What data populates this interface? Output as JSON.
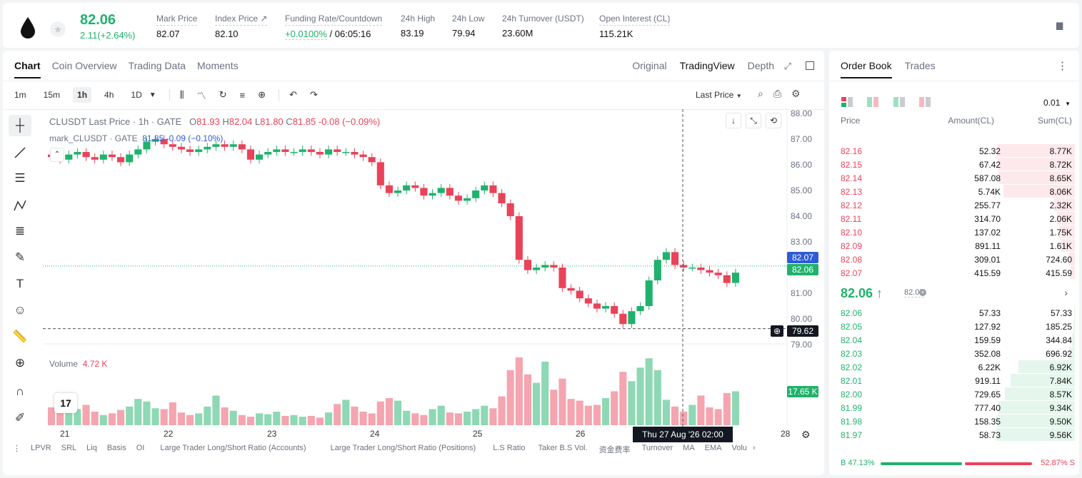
{
  "header": {
    "last_price": "82.06",
    "change": "2.11(+2.64%)",
    "stats": [
      {
        "label": "Mark Price",
        "value": "82.07"
      },
      {
        "label": "Index Price ↗",
        "value": "82.10"
      },
      {
        "label": "Funding Rate/Countdown",
        "value_green": "+0.0100%",
        "value": " / 06:05:16"
      },
      {
        "label": "24h High",
        "value": "83.19"
      },
      {
        "label": "24h Low",
        "value": "79.94"
      },
      {
        "label": "24h Turnover (USDT)",
        "value": "23.60M"
      },
      {
        "label": "Open Interest (CL)",
        "value": "115.21K"
      }
    ]
  },
  "chart_tabs": [
    "Chart",
    "Coin Overview",
    "Trading Data",
    "Moments"
  ],
  "view_tabs": [
    "Original",
    "TradingView",
    "Depth"
  ],
  "timeframes": [
    "1m",
    "15m",
    "1h",
    "4h",
    "1D"
  ],
  "price_type": "Last Price",
  "ohlc": {
    "symbol": "CLUSDT Last Price · 1h · GATE",
    "o_label": "O",
    "o": "81.93",
    "h_label": "H",
    "h": "82.04",
    "l_label": "L",
    "l": "81.80",
    "c_label": "C",
    "c": "81.85",
    "chg": "-0.08 (−0.09%)"
  },
  "mark_line": {
    "label": "mark_CLUSDT · GATE",
    "value": "81.85 -0.09 (−0.10%)"
  },
  "volume_label": "Volume",
  "volume_value": "4.72 K",
  "price_tags": {
    "mark": "82.07",
    "last": "82.06",
    "cross": "79.62",
    "volume": "17.65 K"
  },
  "time_tag": "Thu 27 Aug '26   02:00",
  "indicators": [
    "LPVR",
    "SRL",
    "Liq",
    "Basis",
    "OI",
    "Large Trader Long/Short Ratio (Accounts)",
    "Large Trader Long/Short Ratio (Positions)",
    "L.S Ratio",
    "Taker B.S Vol.",
    "资金费率",
    "Turnover",
    "MA",
    "EMA",
    "Volu"
  ],
  "chart_data": {
    "type": "candlestick",
    "y_axis_ticks": [
      "88.00",
      "87.00",
      "86.00",
      "85.00",
      "84.00",
      "83.00",
      "82.00",
      "81.00",
      "80.00",
      "79.00"
    ],
    "ylim": [
      79,
      88
    ],
    "x_axis_ticks": [
      "21",
      "22",
      "23",
      "24",
      "25",
      "26",
      "28"
    ],
    "candles_close": [
      86.3,
      86.2,
      86.4,
      86.5,
      86.3,
      86.2,
      86.4,
      86.3,
      86.1,
      86.4,
      86.6,
      86.9,
      87.0,
      86.8,
      86.7,
      86.6,
      86.5,
      86.6,
      86.7,
      86.8,
      86.7,
      86.8,
      86.6,
      86.2,
      86.4,
      86.5,
      86.6,
      86.5,
      86.5,
      86.6,
      86.5,
      86.4,
      86.6,
      86.5,
      86.5,
      86.4,
      86.3,
      86.1,
      85.2,
      84.9,
      85.0,
      85.2,
      85.1,
      84.8,
      84.9,
      85.1,
      84.8,
      84.6,
      84.7,
      85.0,
      85.2,
      84.9,
      84.5,
      84.0,
      82.3,
      81.9,
      82.0,
      82.1,
      82.0,
      81.2,
      81.1,
      80.8,
      80.6,
      80.4,
      80.5,
      80.2,
      79.8,
      80.3,
      80.5,
      81.5,
      82.3,
      82.6,
      82.1,
      82.0,
      82.0,
      81.9,
      81.8,
      81.7,
      81.4,
      81.8
    ],
    "volumes": [
      2.1,
      1.8,
      1.5,
      1.9,
      2.4,
      1.6,
      1.2,
      1.4,
      1.8,
      2.2,
      3.1,
      2.8,
      2.0,
      1.9,
      2.7,
      1.5,
      1.2,
      1.4,
      2.2,
      3.5,
      2.1,
      1.7,
      1.2,
      1.0,
      1.4,
      1.3,
      1.6,
      1.1,
      1.2,
      1.0,
      1.1,
      0.9,
      1.5,
      2.5,
      3.0,
      2.2,
      1.6,
      1.4,
      2.8,
      3.2,
      2.9,
      1.7,
      1.4,
      1.2,
      1.9,
      2.3,
      1.5,
      1.4,
      1.6,
      1.9,
      2.3,
      2.0,
      3.4,
      6.5,
      8.0,
      6.0,
      5.0,
      7.5,
      4.2,
      5.5,
      3.1,
      2.9,
      2.3,
      2.4,
      3.2,
      4.0,
      6.3,
      5.2,
      6.8,
      7.9,
      6.5,
      3.0,
      2.2,
      1.6,
      2.4,
      3.5,
      2.1,
      1.9,
      3.8,
      4.0
    ]
  },
  "orderbook": {
    "tabs": [
      "Order Book",
      "Trades"
    ],
    "precision": "0.01",
    "headers": [
      "Price",
      "Amount(CL)",
      "Sum(CL)"
    ],
    "asks": [
      {
        "price": "82.16",
        "amount": "52.32",
        "sum": "8.77K",
        "depth": 0.99
      },
      {
        "price": "82.15",
        "amount": "67.42",
        "sum": "8.72K",
        "depth": 0.98
      },
      {
        "price": "82.14",
        "amount": "587.08",
        "sum": "8.65K",
        "depth": 0.97
      },
      {
        "price": "82.13",
        "amount": "5.74K",
        "sum": "8.06K",
        "depth": 0.91
      },
      {
        "price": "82.12",
        "amount": "255.77",
        "sum": "2.32K",
        "depth": 0.26
      },
      {
        "price": "82.11",
        "amount": "314.70",
        "sum": "2.06K",
        "depth": 0.23
      },
      {
        "price": "82.10",
        "amount": "137.02",
        "sum": "1.75K",
        "depth": 0.2
      },
      {
        "price": "82.09",
        "amount": "891.11",
        "sum": "1.61K",
        "depth": 0.18
      },
      {
        "price": "82.08",
        "amount": "309.01",
        "sum": "724.60",
        "depth": 0.08
      },
      {
        "price": "82.07",
        "amount": "415.59",
        "sum": "415.59",
        "depth": 0.05
      }
    ],
    "mid_price": "82.06 ↑",
    "mid_mark": "82.07",
    "bids": [
      {
        "price": "82.06",
        "amount": "57.33",
        "sum": "57.33",
        "depth": 0.01
      },
      {
        "price": "82.05",
        "amount": "127.92",
        "sum": "185.25",
        "depth": 0.02
      },
      {
        "price": "82.04",
        "amount": "159.59",
        "sum": "344.84",
        "depth": 0.04
      },
      {
        "price": "82.03",
        "amount": "352.08",
        "sum": "696.92",
        "depth": 0.07
      },
      {
        "price": "82.02",
        "amount": "6.22K",
        "sum": "6.92K",
        "depth": 0.72
      },
      {
        "price": "82.01",
        "amount": "919.11",
        "sum": "7.84K",
        "depth": 0.82
      },
      {
        "price": "82.00",
        "amount": "729.65",
        "sum": "8.57K",
        "depth": 0.89
      },
      {
        "price": "81.99",
        "amount": "777.40",
        "sum": "9.34K",
        "depth": 0.97
      },
      {
        "price": "81.98",
        "amount": "158.35",
        "sum": "9.50K",
        "depth": 0.99
      },
      {
        "price": "81.97",
        "amount": "58.73",
        "sum": "9.56K",
        "depth": 1.0
      }
    ],
    "buy_ratio": "B 47.13%",
    "sell_ratio": "52.87% S"
  },
  "colors": {
    "up": "#20b26c",
    "down": "#e94359",
    "up_vol": "#8fd8b5",
    "down_vol": "#f4a5b0"
  }
}
